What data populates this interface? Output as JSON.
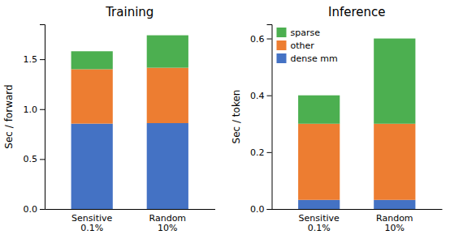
{
  "chart_data": [
    {
      "type": "bar",
      "stacked": true,
      "title": "Training",
      "ylabel": "Sec / forward",
      "categories": [
        "Sensitive\n0.1%",
        "Random\n10%"
      ],
      "series": [
        {
          "color": "#4472C4",
          "values": [
            0.855,
            0.86
          ]
        },
        {
          "color": "#ED7D31",
          "values": [
            0.545,
            0.555
          ]
        },
        {
          "color": "#4CAF50",
          "values": [
            0.18,
            0.325
          ]
        }
      ],
      "ylim": [
        0,
        1.85
      ],
      "yticks": [
        {
          "value": 0.0,
          "label": "0.0"
        },
        0.5,
        {
          "value": 1.0,
          "label": "1.0"
        },
        1.5
      ]
    },
    {
      "type": "bar",
      "stacked": true,
      "title": "Inference",
      "ylabel": "Sec / token",
      "categories": [
        "Sensitive\n0.1%",
        "Random\n10%"
      ],
      "series": [
        {
          "name": "dense mm",
          "color": "#4472C4",
          "values": [
            0.032,
            0.032
          ]
        },
        {
          "name": "other",
          "color": "#ED7D31",
          "values": [
            0.268,
            0.268
          ]
        },
        {
          "name": "sparse",
          "color": "#4CAF50",
          "values": [
            0.1,
            0.3
          ]
        }
      ],
      "ylim": [
        0,
        0.65
      ],
      "yticks": [
        {
          "value": 0.0,
          "label": "0.0"
        },
        0.2,
        0.4,
        0.6
      ],
      "legend": "upper left"
    }
  ]
}
